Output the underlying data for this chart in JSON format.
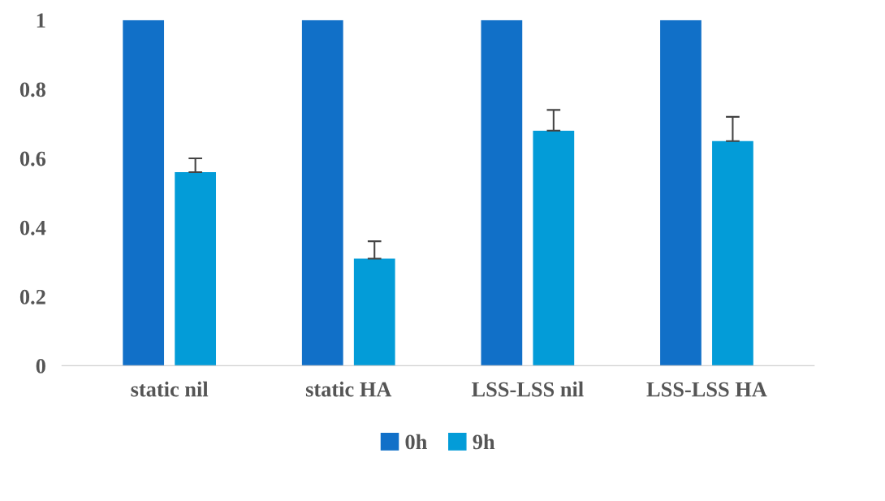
{
  "chart_data": {
    "type": "bar",
    "categories": [
      "static nil",
      "static HA",
      "LSS-LSS nil",
      "LSS-LSS HA"
    ],
    "series": [
      {
        "name": "0h",
        "color": "#1170c8",
        "values": [
          1,
          1,
          1,
          1
        ]
      },
      {
        "name": "9h",
        "color": "#039cd8",
        "values": [
          0.56,
          0.31,
          0.68,
          0.65
        ],
        "errors": [
          [
            0.56,
            0.6
          ],
          [
            0.31,
            0.36
          ],
          [
            0.68,
            0.74
          ],
          [
            0.65,
            0.72
          ]
        ]
      }
    ],
    "ylim": [
      0,
      1
    ],
    "yticks": [
      0,
      0.2,
      0.4,
      0.6,
      0.8,
      1
    ],
    "grid": false,
    "legend": "bottom"
  }
}
